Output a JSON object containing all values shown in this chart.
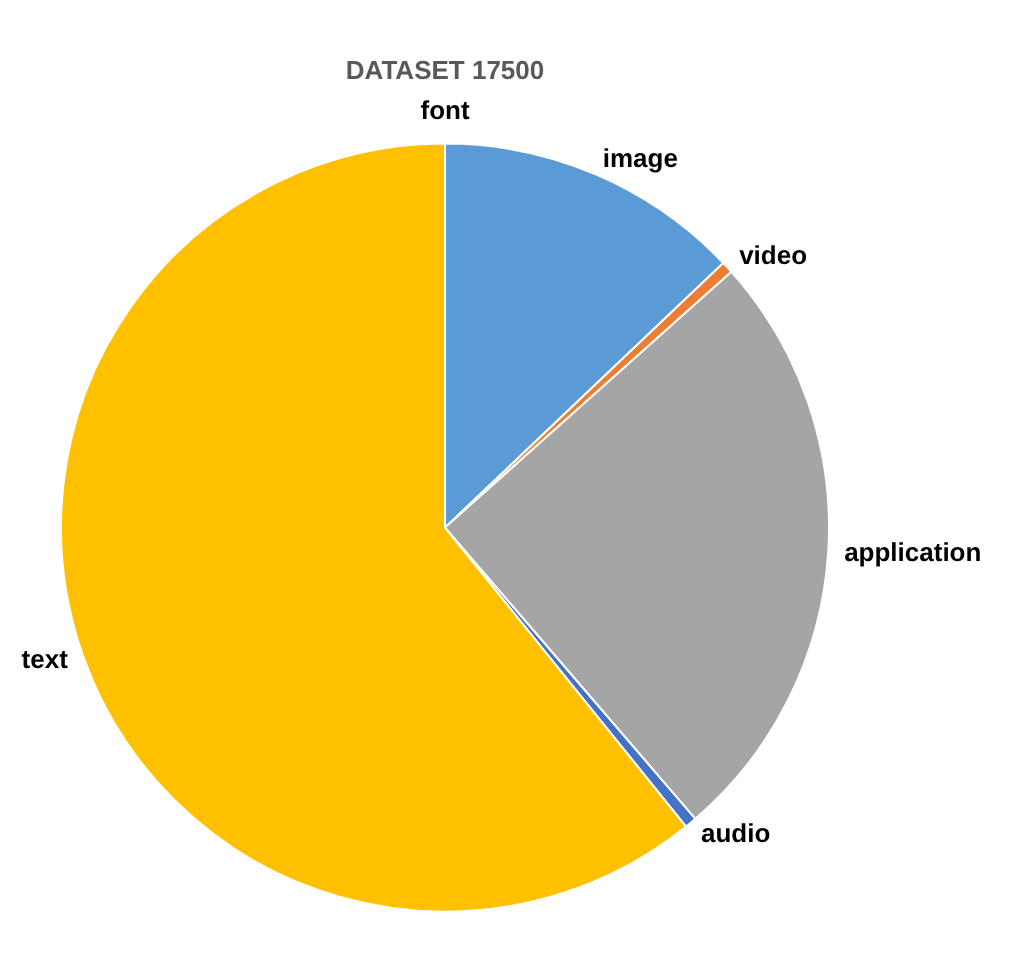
{
  "chart_data": {
    "type": "pie",
    "title": "DATASET 17500",
    "categories": [
      "font",
      "image",
      "video",
      "application",
      "audio",
      "text"
    ],
    "values": [
      0,
      12.9,
      0.5,
      25.3,
      0.5,
      60.8
    ],
    "colors": [
      "#70ad47",
      "#5b9bd5",
      "#ed7d31",
      "#a5a5a5",
      "#4472c4",
      "#ffc000"
    ],
    "legend": false
  }
}
